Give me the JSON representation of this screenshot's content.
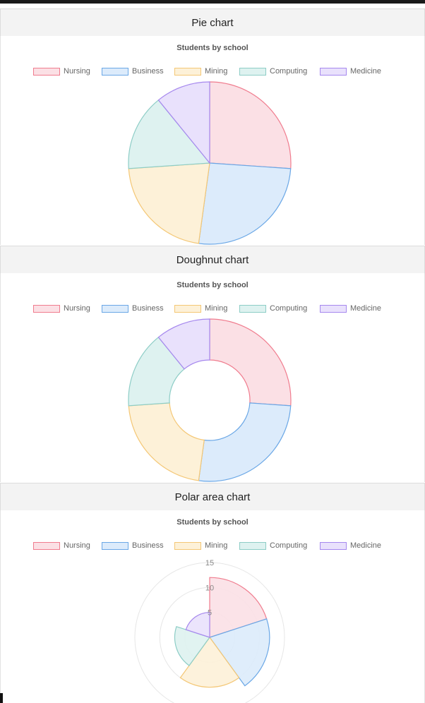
{
  "palette": {
    "borders": [
      "#f07c8e",
      "#6aa7e6",
      "#f4c775",
      "#8dcdc6",
      "#a688ee"
    ],
    "fills": [
      "#fbe0e5",
      "#dcebfb",
      "#fdf1d8",
      "#def2f0",
      "#e9e1fc"
    ]
  },
  "sections": [
    {
      "heading": "Pie chart"
    },
    {
      "heading": "Doughnut chart"
    },
    {
      "heading": "Polar area chart"
    }
  ],
  "chart_data": [
    {
      "type": "pie",
      "title": "Students by school",
      "categories": [
        "Nursing",
        "Business",
        "Mining",
        "Computing",
        "Medicine"
      ],
      "values": [
        12,
        12,
        10,
        7,
        5
      ],
      "legend": "top"
    },
    {
      "type": "doughnut",
      "title": "Students by school",
      "categories": [
        "Nursing",
        "Business",
        "Mining",
        "Computing",
        "Medicine"
      ],
      "values": [
        12,
        12,
        10,
        7,
        5
      ],
      "legend": "top"
    },
    {
      "type": "polarArea",
      "title": "Students by school",
      "categories": [
        "Nursing",
        "Business",
        "Mining",
        "Computing",
        "Medicine"
      ],
      "values": [
        12,
        12,
        10,
        7,
        5
      ],
      "legend": "top",
      "r_ticks": [
        "5",
        "10",
        "15"
      ],
      "r_max": 15
    }
  ]
}
